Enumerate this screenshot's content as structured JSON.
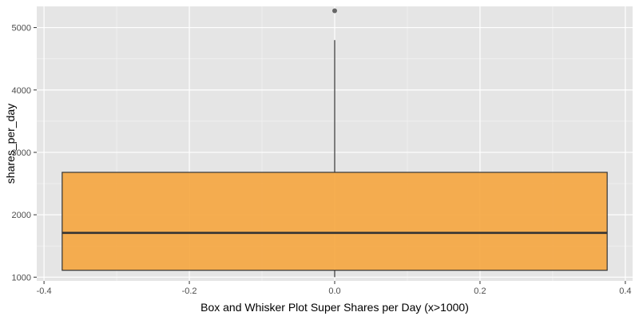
{
  "chart_data": {
    "type": "boxplot",
    "title": "",
    "xlabel": "Box and Whisker Plot Super Shares per Day (x>1000)",
    "ylabel": "shares_per_day",
    "xlim": [
      -0.41,
      0.41
    ],
    "ylim": [
      940,
      5340
    ],
    "x_ticks": [
      -0.4,
      -0.2,
      0.0,
      0.2,
      0.4
    ],
    "x_tick_labels": [
      "-0.4",
      "-0.2",
      "0.0",
      "0.2",
      "0.4"
    ],
    "y_ticks": [
      1000,
      2000,
      3000,
      4000,
      5000
    ],
    "y_tick_labels": [
      "1000",
      "2000",
      "3000",
      "4000",
      "5000"
    ],
    "grid": true,
    "box": {
      "x_center": 0,
      "x_left": -0.375,
      "x_right": 0.375,
      "whisker_low": 1000,
      "q1": 1110,
      "median": 1710,
      "q3": 2680,
      "whisker_high": 4800,
      "outliers": [
        5270
      ]
    },
    "colors": {
      "panel_background": "#e5e5e5",
      "grid_major": "#ffffff",
      "grid_minor": "#f2f2f2",
      "box_fill": "#f5a742",
      "box_outline": "#333333",
      "outlier": "#666666"
    }
  }
}
